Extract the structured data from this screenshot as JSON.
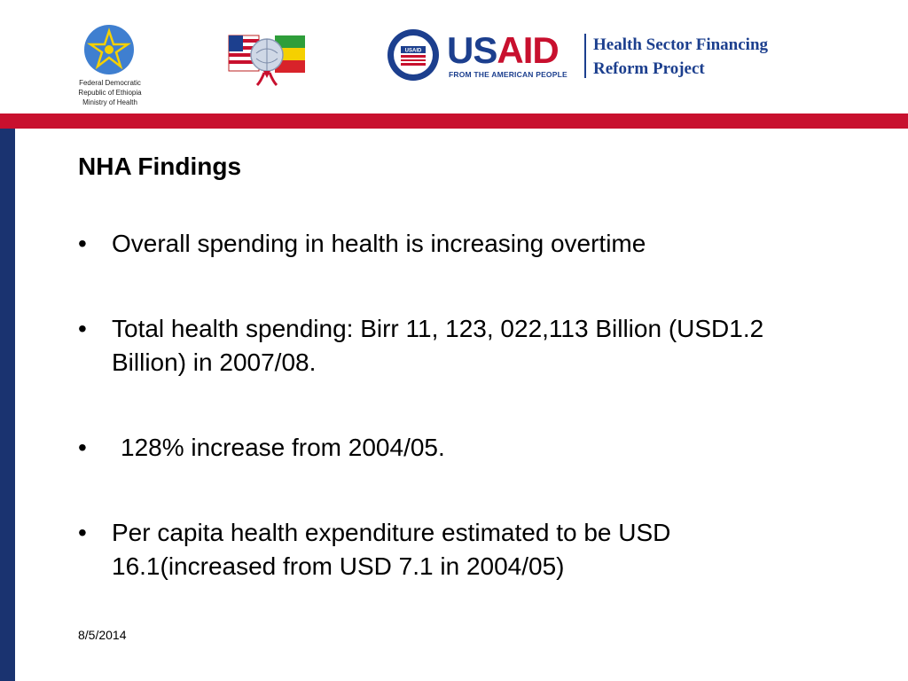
{
  "header": {
    "moh_lines": [
      "Federal Democratic",
      "Republic of Ethiopia",
      "Ministry of Health"
    ],
    "usaid_us": "US",
    "usaid_aid": "AID",
    "usaid_tagline": "FROM THE AMERICAN PEOPLE",
    "usaid_seal_text": "USAID",
    "project_lines": [
      "Health Sector Financing",
      "Reform Project"
    ]
  },
  "slide": {
    "title": "NHA Findings",
    "bullet_symbol": "•",
    "bullets": [
      "Overall spending in health is increasing overtime",
      "Total health spending: Birr 11, 123, 022,113 Billion (USD1.2 Billion) in 2007/08.",
      "128%  increase from 2004/05.",
      "Per capita  health expenditure estimated to be USD 16.1(increased from USD 7.1 in 2004/05)"
    ],
    "date": "8/5/2014"
  },
  "colors": {
    "red_bar": "#c8102e",
    "blue_bar": "#1a3370",
    "usaid_blue": "#1c3f8e"
  }
}
